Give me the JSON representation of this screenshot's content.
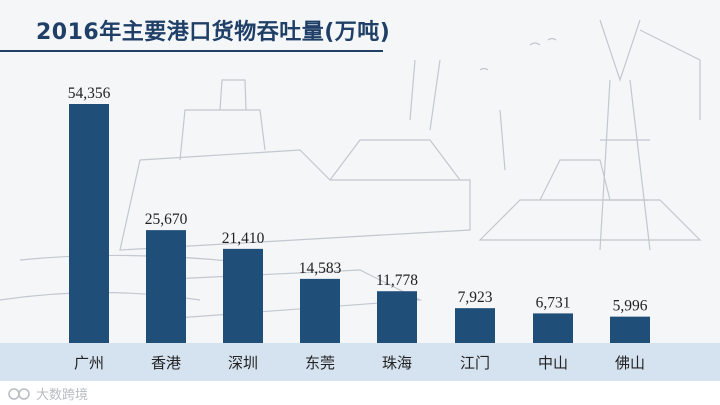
{
  "chart_data": {
    "type": "bar",
    "title": "2016年主要港口货物吞吐量(万吨)",
    "categories": [
      "广州",
      "香港",
      "深圳",
      "东莞",
      "珠海",
      "江门",
      "中山",
      "佛山"
    ],
    "values": [
      54356,
      25670,
      21410,
      14583,
      11778,
      7923,
      6731,
      5996
    ],
    "value_labels": [
      "54,356",
      "25,670",
      "21,410",
      "14,583",
      "11,778",
      "7,923",
      "6,731",
      "5,996"
    ],
    "ylim": [
      0,
      54356
    ],
    "bar_color": "#1f4e79",
    "grid": false,
    "legend": "none"
  },
  "watermark": {
    "text": "大数跨境",
    "color": "#b8bcc2"
  }
}
